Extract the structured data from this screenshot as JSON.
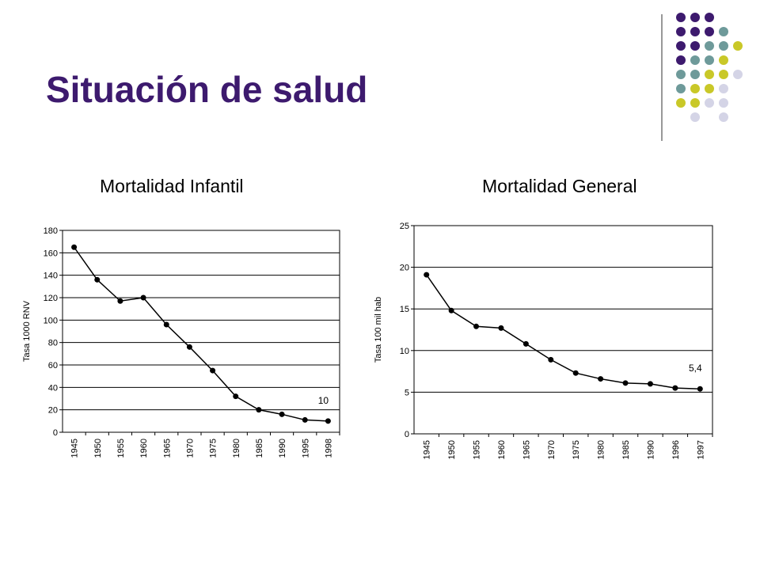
{
  "slide": {
    "title": "Situación de salud"
  },
  "decoration": {
    "dot_grid": [
      [
        1,
        1,
        1,
        0,
        0
      ],
      [
        1,
        1,
        1,
        2,
        0
      ],
      [
        1,
        1,
        2,
        2,
        3
      ],
      [
        1,
        2,
        2,
        3,
        0
      ],
      [
        2,
        2,
        3,
        3,
        4
      ],
      [
        2,
        3,
        3,
        4,
        0
      ],
      [
        3,
        3,
        4,
        4,
        0
      ],
      [
        0,
        4,
        0,
        4,
        0
      ]
    ],
    "colors": {
      "1": "#3d1a6e",
      "2": "#6e9a9a",
      "3": "#c9c828",
      "4": "#d4d4e6"
    },
    "divider_color": "#555555"
  },
  "chart_data": [
    {
      "heading": "Mortalidad Infantil",
      "type": "line",
      "ylabel": "Tasa 1000 RNV",
      "xlabel": "",
      "categories": [
        "1945",
        "1950",
        "1955",
        "1960",
        "1965",
        "1970",
        "1975",
        "1980",
        "1985",
        "1990",
        "1995",
        "1998"
      ],
      "values": [
        165,
        136,
        117,
        120,
        96,
        76,
        55,
        32,
        20,
        16,
        11,
        10
      ],
      "ylim": [
        0,
        180
      ],
      "yticks": [
        "0",
        "20",
        "40",
        "60",
        "80",
        "100",
        "120",
        "140",
        "160",
        "180"
      ],
      "annotation": "10",
      "grid": true
    },
    {
      "heading": "Mortalidad General",
      "type": "line",
      "ylabel": "Tasa 100 mil hab",
      "xlabel": "",
      "categories": [
        "1945",
        "1950",
        "1955",
        "1960",
        "1965",
        "1970",
        "1975",
        "1980",
        "1985",
        "1990",
        "1996",
        "1997"
      ],
      "values": [
        19.1,
        14.8,
        12.9,
        12.7,
        10.8,
        8.9,
        7.3,
        6.6,
        6.1,
        6.0,
        5.5,
        5.4
      ],
      "ylim": [
        0,
        25
      ],
      "yticks": [
        "0",
        "5",
        "10",
        "15",
        "20",
        "25"
      ],
      "annotation": "5,4",
      "grid": true
    }
  ]
}
